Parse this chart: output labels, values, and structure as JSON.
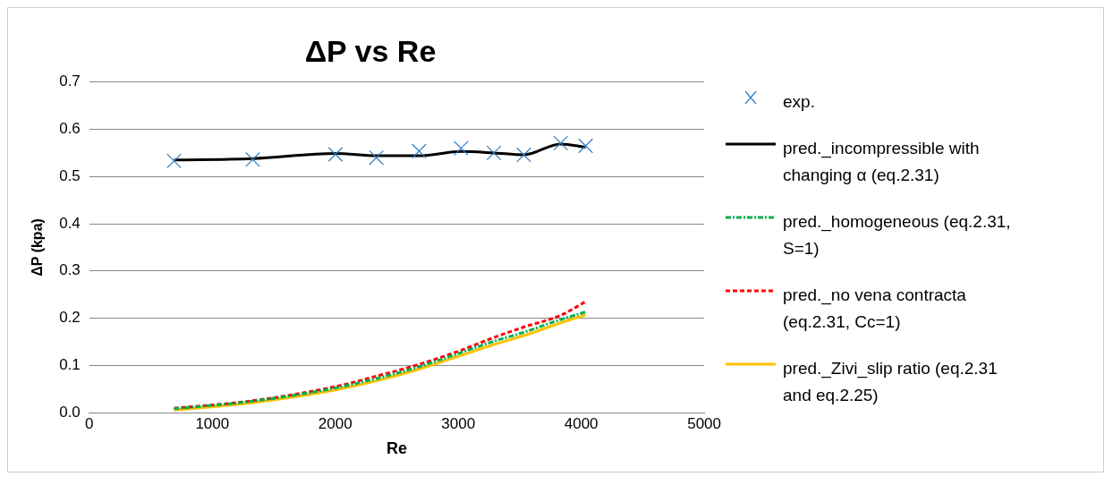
{
  "chart_data": {
    "type": "line",
    "title": "ΔP vs Re",
    "xlabel": "Re",
    "ylabel": "ΔP (kpa)",
    "xlim": [
      0,
      5000
    ],
    "xticks": [
      0,
      1000,
      2000,
      3000,
      4000,
      5000
    ],
    "ylim": [
      0,
      0.7
    ],
    "yticks": [
      {
        "value": 0,
        "label": "0.0"
      },
      {
        "value": 0.1,
        "label": "0.1"
      },
      {
        "value": 0.2,
        "label": "0.2"
      },
      {
        "value": 0.3,
        "label": "0.3"
      },
      {
        "value": 0.4,
        "label": "0.4"
      },
      {
        "value": 0.5,
        "label": "0.5"
      },
      {
        "value": 0.6,
        "label": "0.6"
      },
      {
        "value": 0.7,
        "label": "0.7"
      }
    ],
    "grid": "y",
    "legend": "right",
    "x": [
      689,
      1329,
      2002,
      2334,
      2682,
      3023,
      3290,
      3533,
      3833,
      4036
    ],
    "series": [
      {
        "name": "exp.",
        "type": "scatter",
        "marker": "cross",
        "color": "#2e7dc4",
        "values": [
          0.533,
          0.536,
          0.547,
          0.54,
          0.554,
          0.56,
          0.55,
          0.546,
          0.571,
          0.565
        ]
      },
      {
        "name": "pred._incompressible with changing α (eq.2.31)",
        "line_style": "solid",
        "color": "#000000",
        "values": [
          0.535,
          0.538,
          0.549,
          0.544,
          0.544,
          0.553,
          0.55,
          0.546,
          0.569,
          0.562
        ]
      },
      {
        "name": "pred._homogeneous (eq.2.31, S=1)",
        "line_style": "dashed",
        "color": "#00b050",
        "values": [
          0.008,
          0.024,
          0.052,
          0.072,
          0.097,
          0.127,
          0.151,
          0.17,
          0.197,
          0.213
        ]
      },
      {
        "name": "pred._no vena contracta (eq.2.31, Cc=1)",
        "line_style": "dotted",
        "color": "#ff0000",
        "values": [
          0.009,
          0.025,
          0.055,
          0.077,
          0.102,
          0.132,
          0.159,
          0.181,
          0.206,
          0.235
        ]
      },
      {
        "name": "pred._Zivi_slip ratio (eq.2.31 and eq.2.25)",
        "line_style": "solid",
        "color": "#ffc000",
        "values": [
          0.005,
          0.021,
          0.048,
          0.067,
          0.092,
          0.121,
          0.144,
          0.163,
          0.19,
          0.207
        ]
      }
    ]
  }
}
